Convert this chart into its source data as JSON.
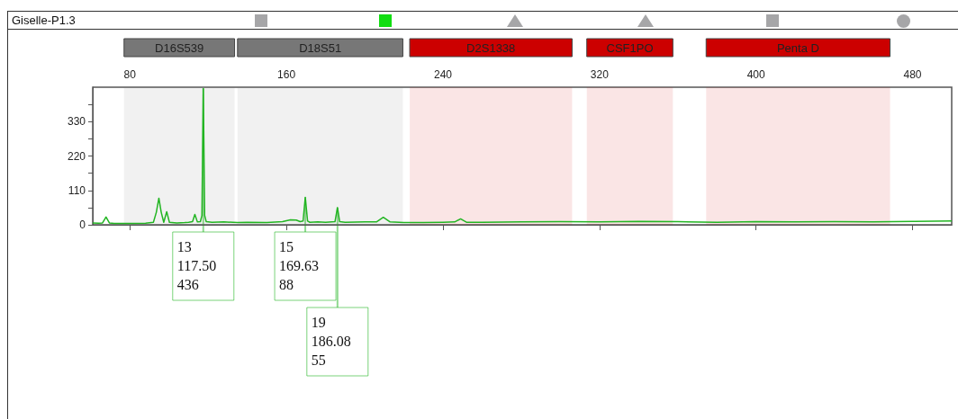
{
  "chart_data": {
    "type": "line",
    "title": "Giselle-P1.3",
    "x": [
      61,
      64,
      66,
      67.8,
      69.5,
      72,
      80,
      88,
      92,
      93.5,
      94.8,
      96,
      97.3,
      98.8,
      100.2,
      104,
      108,
      110,
      112,
      113.2,
      114.5,
      116,
      116.8,
      117.5,
      118.2,
      119,
      122,
      128,
      135,
      140,
      150,
      158,
      162,
      165,
      167,
      168.5,
      169.63,
      170.8,
      172,
      176,
      180,
      184.8,
      186.08,
      187.2,
      190,
      200,
      206,
      209.5,
      213,
      220,
      230,
      240,
      246,
      249,
      252,
      260,
      280,
      300,
      320,
      340,
      360,
      380,
      400,
      420,
      440,
      460,
      480,
      500
    ],
    "series": [
      {
        "color": "#22b522",
        "values": [
          6,
          5,
          6,
          25,
          6,
          4,
          4,
          5,
          8,
          40,
          85,
          40,
          8,
          42,
          8,
          6,
          7,
          8,
          10,
          33,
          9,
          10,
          30,
          436,
          30,
          10,
          8,
          9,
          7,
          8,
          7,
          10,
          16,
          15,
          10,
          12,
          88,
          12,
          8,
          9,
          8,
          10,
          55,
          10,
          8,
          9,
          9,
          24,
          9,
          7,
          7,
          8,
          9,
          19,
          8,
          8,
          9,
          10,
          9,
          11,
          10,
          8,
          10,
          9,
          10,
          9,
          11,
          12
        ]
      }
    ],
    "xlim": [
      61,
      500
    ],
    "xticks": [
      80,
      160,
      240,
      320,
      400,
      480
    ],
    "ylim": [
      0,
      440
    ],
    "yticks": [
      0,
      110,
      220,
      330
    ],
    "bands": [
      {
        "axis": "x",
        "from": 77,
        "to": 133.5,
        "label": "D16S539",
        "color": "#777777"
      },
      {
        "axis": "x",
        "from": 135,
        "to": 219.5,
        "label": "D18S51",
        "color": "#777777"
      },
      {
        "axis": "x",
        "from": 223,
        "to": 306,
        "label": "D2S1338",
        "color": "#cc0000"
      },
      {
        "axis": "x",
        "from": 313.5,
        "to": 357.5,
        "label": "CSF1PO",
        "color": "#cc0000"
      },
      {
        "axis": "x",
        "from": 374.5,
        "to": 468.5,
        "label": "Penta D",
        "color": "#cc0000"
      }
    ],
    "annotations": [
      {
        "text": "13\n117.50\n436",
        "x": 117.5,
        "y": 436
      },
      {
        "text": "15\n169.63\n88",
        "x": 169.63,
        "y": 88
      },
      {
        "text": "19\n186.08\n55",
        "x": 186.08,
        "y": 55
      }
    ],
    "marker": "none",
    "line_style": "solid",
    "grid": false
  }
}
